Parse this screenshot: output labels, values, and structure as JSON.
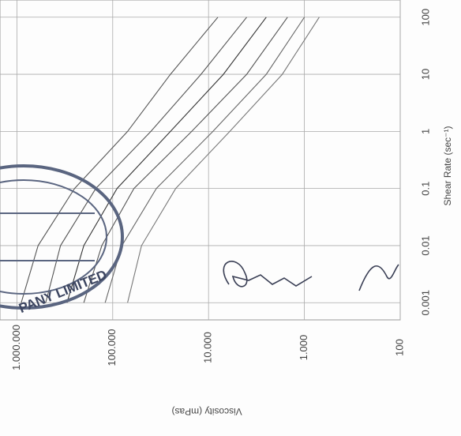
{
  "chart_data": {
    "type": "line",
    "x_label": "Shear Rate (sec⁻¹)",
    "y_label": "Viscosity (mPas)",
    "xscale": "log",
    "yscale": "log",
    "grid": true,
    "x": [
      0.001,
      0.01,
      0.1,
      1,
      10,
      100
    ],
    "xlim": [
      0.0005,
      200
    ],
    "xticks": [
      0.001,
      0.01,
      0.1,
      1,
      10,
      100
    ],
    "ylim": [
      100,
      1500000
    ],
    "yticks": [
      {
        "value": 1000000,
        "label": "1.000.000"
      },
      {
        "value": 100000,
        "label": "100.000"
      },
      {
        "value": 10000,
        "label": "10.000"
      },
      {
        "value": 1000,
        "label": "1.000"
      },
      100
    ],
    "stamp_text": "PANY LIMITED",
    "series": [
      {
        "color": "#555555",
        "values": [
          900000,
          600000,
          250000,
          70000,
          25000,
          8000
        ]
      },
      {
        "color": "#555555",
        "values": [
          500000,
          350000,
          150000,
          40000,
          12000,
          4000
        ]
      },
      {
        "color": "#333333",
        "values": [
          300000,
          200000,
          90000,
          25000,
          7000,
          2500
        ]
      },
      {
        "color": "#555555",
        "values": [
          200000,
          130000,
          60000,
          15000,
          4000,
          1500
        ]
      },
      {
        "color": "#666666",
        "values": [
          120000,
          80000,
          35000,
          9000,
          2500,
          1000
        ]
      },
      {
        "color": "#777777",
        "values": [
          70000,
          50000,
          22000,
          6000,
          1700,
          700
        ]
      }
    ]
  }
}
